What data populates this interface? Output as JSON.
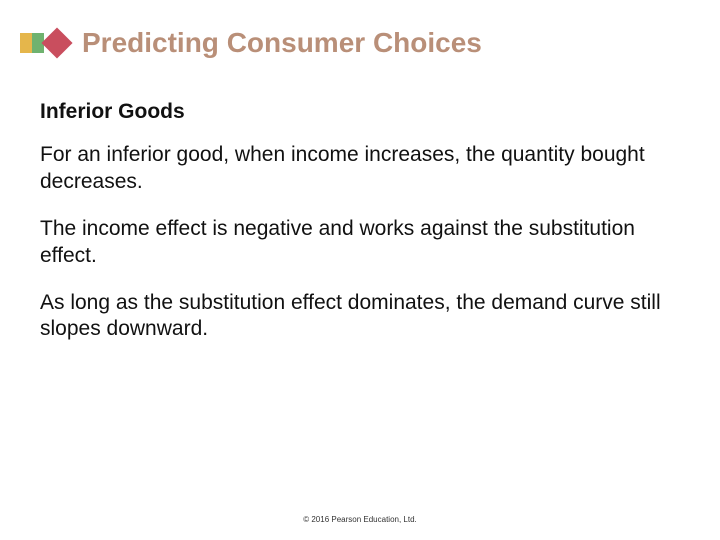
{
  "title": "Predicting Consumer Choices",
  "title_color": "#b98f78",
  "title_fontsize": 28,
  "bullet_colors": {
    "left": "#e5b64b",
    "mid": "#6fb26f",
    "diamond": "#c94e5e"
  },
  "subheading": "Inferior Goods",
  "paragraphs": [
    "For an inferior good, when income increases, the quantity bought decreases.",
    "The income effect is negative and works against the substitution effect.",
    "As long as the substitution effect dominates, the demand curve still slopes downward."
  ],
  "body_fontsize": 21,
  "body_color": "#111111",
  "footer": "© 2016 Pearson Education, Ltd.",
  "footer_fontsize": 8,
  "footer_color": "#333333",
  "background_color": "#ffffff",
  "slide_width": 720,
  "slide_height": 540
}
